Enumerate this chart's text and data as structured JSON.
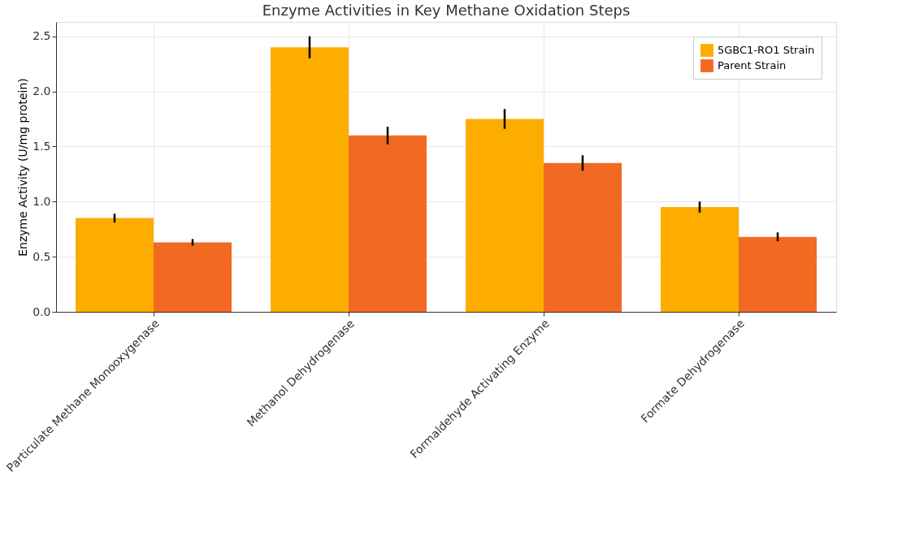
{
  "chart_data": {
    "type": "bar",
    "title": "Enzyme Activities in Key Methane Oxidation Steps",
    "ylabel": "Enzyme Activity (U/mg protein)",
    "categories": [
      "Particulate Methane Monooxygenase",
      "Methanol Dehydrogenase",
      "Formaldehyde Activating Enzyme",
      "Formate Dehydrogenase"
    ],
    "series": [
      {
        "name": "5GBC1-RO1 Strain",
        "color": "#fdac00",
        "values": [
          0.85,
          2.4,
          1.75,
          0.95
        ],
        "errors": [
          0.04,
          0.1,
          0.09,
          0.05
        ]
      },
      {
        "name": "Parent Strain",
        "color": "#f26a21",
        "values": [
          0.63,
          1.6,
          1.35,
          0.68
        ],
        "errors": [
          0.03,
          0.08,
          0.07,
          0.04
        ]
      }
    ],
    "ylim": [
      0,
      2.63
    ],
    "yticks": [
      {
        "value": 0,
        "label": "0.0"
      },
      0.5,
      {
        "value": 1,
        "label": "1.0"
      },
      1.5,
      {
        "value": 2,
        "label": "2.0"
      },
      2.5
    ],
    "grid": true,
    "legend": "top right"
  }
}
